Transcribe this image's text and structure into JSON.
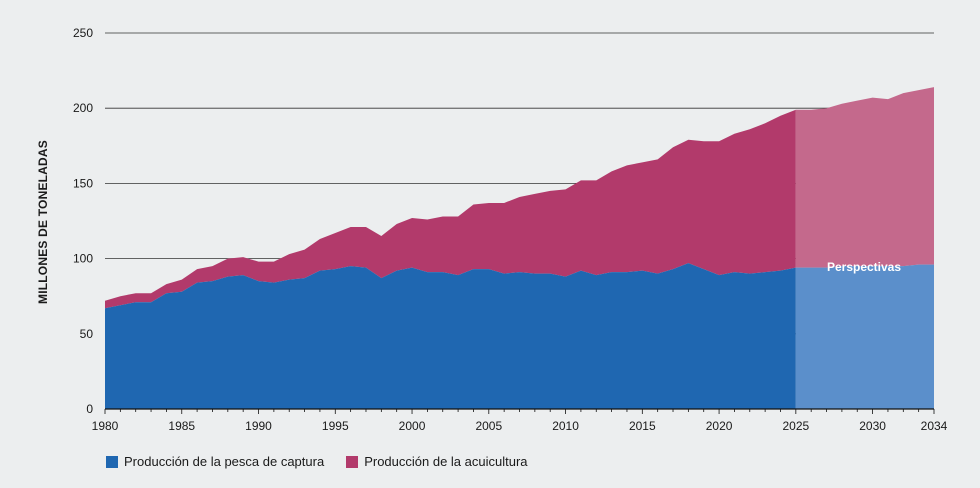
{
  "chart_data": {
    "type": "area",
    "ylabel": "MILLONES DE TONELADAS",
    "xlabel": "",
    "ylim": [
      0,
      250
    ],
    "xlim": [
      1980,
      2034
    ],
    "y_ticks": [
      0,
      50,
      100,
      150,
      200,
      250
    ],
    "x_ticks": [
      1980,
      1985,
      1990,
      1995,
      2000,
      2005,
      2010,
      2015,
      2020,
      2025,
      2030,
      2034
    ],
    "grid": "horizontal",
    "stacked": true,
    "projection_start": 2025,
    "projection_label": "Perspectivas",
    "legend_position": "bottom-left",
    "x": [
      1980,
      1981,
      1982,
      1983,
      1984,
      1985,
      1986,
      1987,
      1988,
      1989,
      1990,
      1991,
      1992,
      1993,
      1994,
      1995,
      1996,
      1997,
      1998,
      1999,
      2000,
      2001,
      2002,
      2003,
      2004,
      2005,
      2006,
      2007,
      2008,
      2009,
      2010,
      2011,
      2012,
      2013,
      2014,
      2015,
      2016,
      2017,
      2018,
      2019,
      2020,
      2021,
      2022,
      2023,
      2024,
      2025,
      2026,
      2027,
      2028,
      2029,
      2030,
      2031,
      2032,
      2033,
      2034
    ],
    "series": [
      {
        "name": "Producción de la pesca de captura",
        "color": "#1f67b1",
        "projection_color": "#5b8fcb",
        "values": [
          67,
          69,
          71,
          71,
          77,
          78,
          84,
          85,
          88,
          89,
          85,
          84,
          86,
          87,
          92,
          93,
          95,
          94,
          87,
          92,
          94,
          91,
          91,
          89,
          93,
          93,
          90,
          91,
          90,
          90,
          88,
          92,
          89,
          91,
          91,
          92,
          90,
          93,
          97,
          93,
          89,
          91,
          90,
          91,
          92,
          94,
          94,
          94,
          95,
          95,
          95,
          95,
          95,
          96,
          96
        ]
      },
      {
        "name": "Producción de la acuicultura",
        "color": "#b23a6b",
        "projection_color": "#c4698c",
        "values": [
          5,
          6,
          6,
          6,
          6,
          8,
          9,
          10,
          12,
          12,
          13,
          14,
          17,
          19,
          21,
          24,
          26,
          27,
          28,
          31,
          33,
          35,
          37,
          39,
          43,
          44,
          47,
          50,
          53,
          55,
          58,
          60,
          63,
          67,
          71,
          72,
          76,
          81,
          82,
          85,
          89,
          92,
          96,
          99,
          103,
          105,
          105,
          106,
          108,
          110,
          112,
          111,
          115,
          116,
          118
        ]
      }
    ]
  }
}
